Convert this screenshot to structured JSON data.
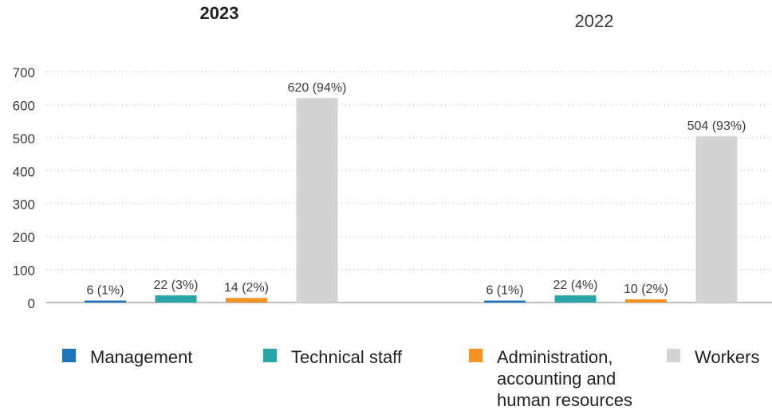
{
  "colors": {
    "management": "#1f74b8",
    "technical": "#2aa5a6",
    "administration": "#f39325",
    "workers": "#d3d3d3",
    "grid": "#b0b0b0",
    "axis": "#9a9a9a",
    "text": "#3c3c3c"
  },
  "chart_data": {
    "type": "bar",
    "ylim": [
      0,
      700
    ],
    "yticks": [
      0,
      100,
      200,
      300,
      400,
      500,
      600,
      700
    ],
    "grid": "dotted horizontal",
    "legend_position": "bottom",
    "groups": [
      {
        "title": "2023",
        "categories": [
          "Management",
          "Technical staff",
          "Administration, accounting and human resources",
          "Workers"
        ],
        "values": [
          6,
          22,
          14,
          620
        ],
        "labels": [
          "6 (1%)",
          "22 (3%)",
          "14 (2%)",
          "620 (94%)"
        ]
      },
      {
        "title": "2022",
        "categories": [
          "Management",
          "Technical staff",
          "Administration, accounting and human resources",
          "Workers"
        ],
        "values": [
          6,
          22,
          10,
          504
        ],
        "labels": [
          "6 (1%)",
          "22 (4%)",
          "10 (2%)",
          "504 (93%)"
        ]
      }
    ]
  },
  "legend": [
    {
      "label_lines": [
        "Management"
      ],
      "color_key": "management"
    },
    {
      "label_lines": [
        "Technical staff"
      ],
      "color_key": "technical"
    },
    {
      "label_lines": [
        "Administration,",
        "accounting and",
        "human resources"
      ],
      "color_key": "administration"
    },
    {
      "label_lines": [
        "Workers"
      ],
      "color_key": "workers"
    }
  ]
}
